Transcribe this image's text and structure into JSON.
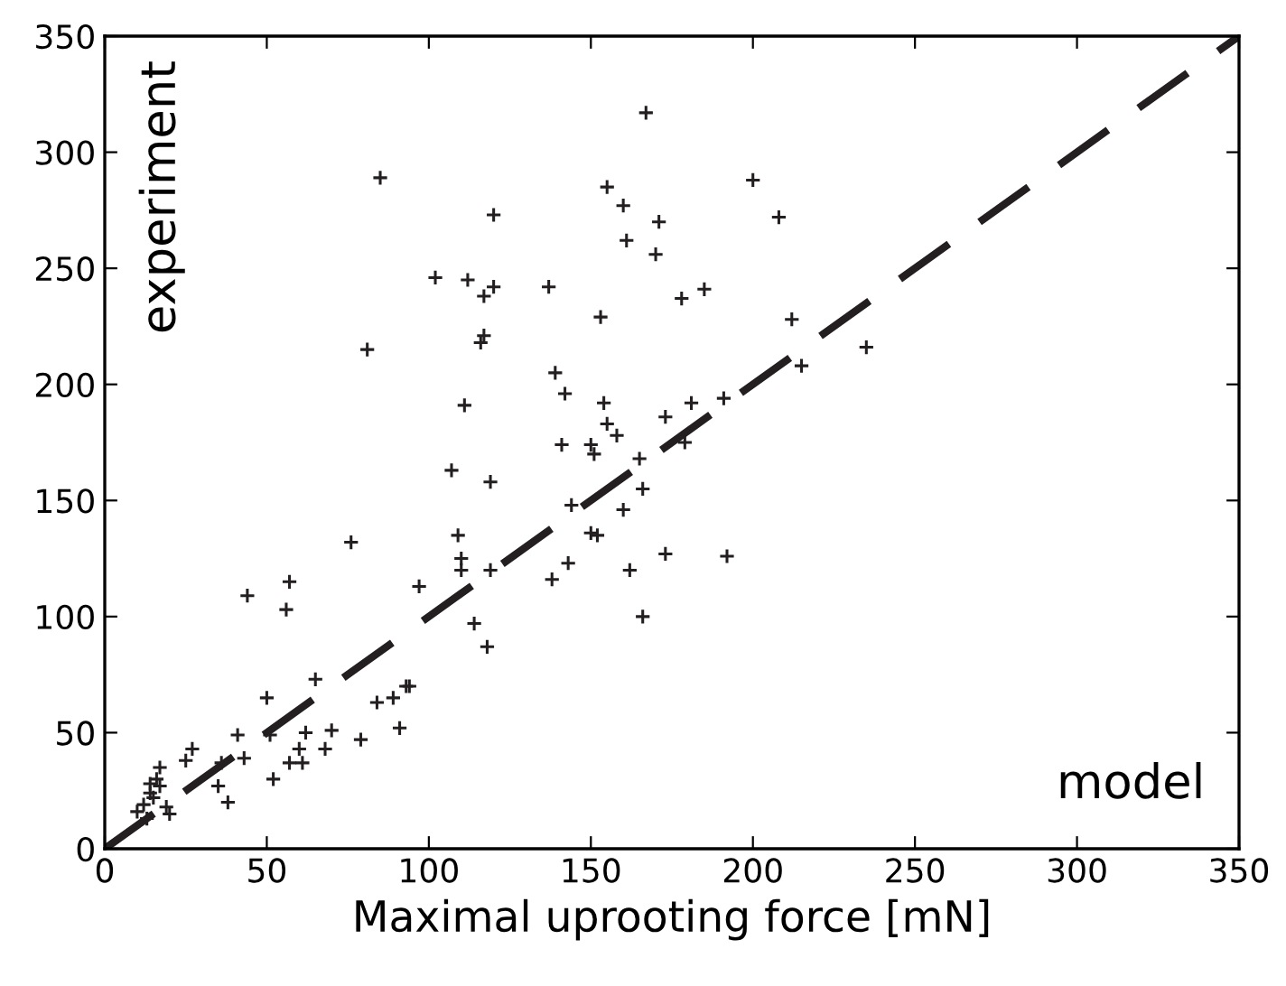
{
  "chart_data": {
    "type": "scatter",
    "xlabel": "Maximal uprooting force [mN]",
    "annotations": [
      "experiment",
      "model"
    ],
    "xlim": [
      0,
      350
    ],
    "ylim": [
      0,
      350
    ],
    "xticks": [
      0,
      50,
      100,
      150,
      200,
      250,
      300,
      350
    ],
    "yticks": [
      0,
      50,
      100,
      150,
      200,
      250,
      300,
      350
    ],
    "grid": false,
    "legend": false,
    "series": [
      {
        "color": "#231f20",
        "marker": "cross",
        "x": [
          10,
          12,
          13,
          14,
          14,
          15,
          16,
          17,
          17,
          19,
          20,
          25,
          27,
          35,
          36,
          38,
          41,
          43,
          44,
          50,
          51,
          52,
          56,
          57,
          57,
          60,
          61,
          62,
          65,
          68,
          70,
          76,
          79,
          81,
          84,
          85,
          89,
          91,
          93,
          94,
          97,
          102,
          107,
          109,
          110,
          110,
          111,
          112,
          114,
          116,
          117,
          117,
          118,
          119,
          119,
          120,
          120,
          137,
          138,
          139,
          141,
          142,
          143,
          144,
          150,
          150,
          151,
          152,
          153,
          154,
          155,
          155,
          158,
          160,
          160,
          161,
          162,
          165,
          166,
          166,
          167,
          170,
          171,
          173,
          173,
          178,
          179,
          181,
          185,
          191,
          192,
          200,
          208,
          212,
          215,
          235
        ],
        "values": [
          16,
          19,
          13,
          24,
          28,
          22,
          30,
          35,
          27,
          18,
          15,
          38,
          43,
          27,
          37,
          20,
          49,
          39,
          109,
          65,
          49,
          30,
          103,
          115,
          37,
          43,
          37,
          50,
          73,
          43,
          51,
          132,
          47,
          215,
          63,
          289,
          65,
          52,
          70,
          70,
          113,
          246,
          163,
          135,
          120,
          125,
          191,
          245,
          97,
          218,
          238,
          221,
          87,
          158,
          120,
          242,
          273,
          242,
          116,
          205,
          174,
          196,
          123,
          148,
          136,
          174,
          170,
          135,
          229,
          192,
          183,
          285,
          178,
          146,
          277,
          262,
          120,
          168,
          100,
          155,
          317,
          256,
          270,
          186,
          127,
          237,
          175,
          192,
          241,
          194,
          126,
          288,
          272,
          228,
          208,
          216
        ]
      },
      {
        "type": "line",
        "color": "#231f20",
        "line_style": "dashed",
        "x": [
          0,
          350
        ],
        "values": [
          0,
          350
        ]
      }
    ]
  }
}
